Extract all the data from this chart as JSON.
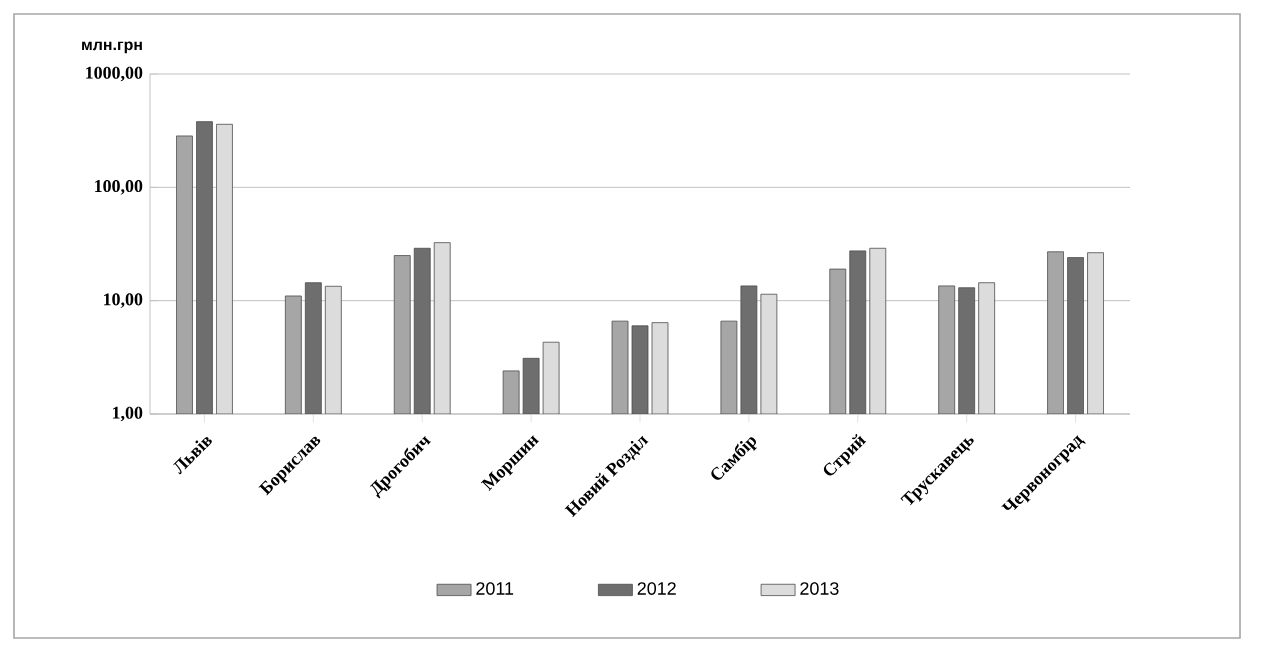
{
  "chart_data": {
    "type": "bar",
    "ylabel": "млн.грн",
    "log": "y",
    "grid": "y",
    "legend": "bottom",
    "categories": [
      "Львів",
      "Борислав",
      "Дрогобич",
      "Моршин",
      "Новий Розділ",
      "Самбір",
      "Стрий",
      "Трускавець",
      "Червоноград"
    ],
    "ylim": [
      1,
      1000
    ],
    "yticks": [
      {
        "value": 1,
        "label": "1,00"
      },
      {
        "value": 10,
        "label": "10,00"
      },
      {
        "value": 100,
        "label": "100,00"
      },
      {
        "value": 1000,
        "label": "1000,00"
      }
    ],
    "series": [
      {
        "name": "2011",
        "color": "#a6a6a6",
        "values": [
          284,
          11,
          25,
          2.4,
          6.6,
          6.6,
          19,
          13.5,
          27
        ]
      },
      {
        "name": "2012",
        "color": "#6e6e6e",
        "values": [
          380,
          14.4,
          29,
          3.1,
          6.0,
          13.5,
          27.5,
          13,
          24
        ]
      },
      {
        "name": "2013",
        "color": "#dcdcdc",
        "values": [
          360,
          13.4,
          32.5,
          4.3,
          6.4,
          11.4,
          29,
          14.4,
          26.5
        ]
      }
    ]
  }
}
